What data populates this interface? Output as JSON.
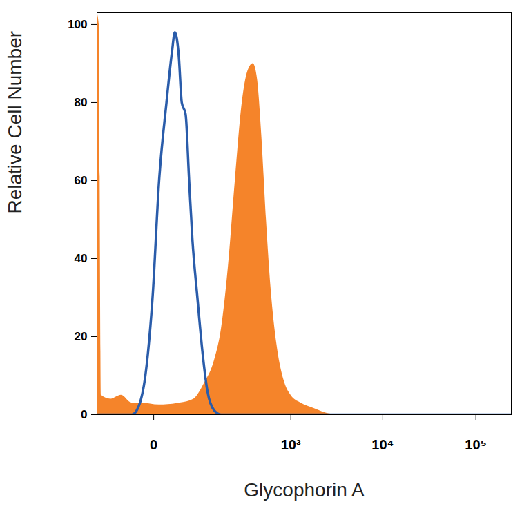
{
  "chart_data": {
    "type": "area",
    "x_label": "Glycophorin A",
    "y_label": "Relative Cell Number",
    "log": "x",
    "xlim": [
      -107,
      240000
    ],
    "xticks": [
      0,
      {
        "value": 1000,
        "label": "10³"
      },
      {
        "value": 10000,
        "label": "10⁴"
      },
      {
        "value": 100000,
        "label": "10⁵"
      }
    ],
    "ylim": [
      0,
      103
    ],
    "yticks": [
      0,
      20,
      40,
      60,
      80,
      100
    ],
    "series": [
      {
        "type": "area",
        "color": "#f5842a",
        "x": [
          -107,
          -100,
          -93,
          -66,
          -43,
          -25,
          -12,
          5,
          32,
          59,
          87,
          122,
          151,
          186,
          227,
          276,
          322,
          373,
          418,
          467,
          530,
          600,
          697,
          833,
          1000,
          1290,
          1840,
          2380,
          3350,
          240000
        ],
        "values": [
          103,
          100,
          5,
          4,
          5,
          3,
          3,
          2.5,
          3,
          4,
          8,
          14,
          22,
          38,
          60,
          80,
          88,
          90,
          86,
          72,
          50,
          32,
          18,
          9,
          5,
          3,
          1.5,
          0.5,
          0,
          0
        ]
      },
      {
        "type": "line",
        "color": "#2a5caa",
        "x": [
          -107,
          -25,
          -16,
          -8,
          -1,
          5,
          13,
          20,
          24,
          30,
          35,
          42,
          49,
          56,
          68,
          83,
          97,
          122,
          151,
          240000
        ],
        "values": [
          0,
          0,
          2,
          10,
          30,
          60,
          80,
          93,
          98,
          92,
          80,
          77,
          60,
          45,
          30,
          15,
          6,
          1,
          0,
          0
        ]
      }
    ]
  }
}
